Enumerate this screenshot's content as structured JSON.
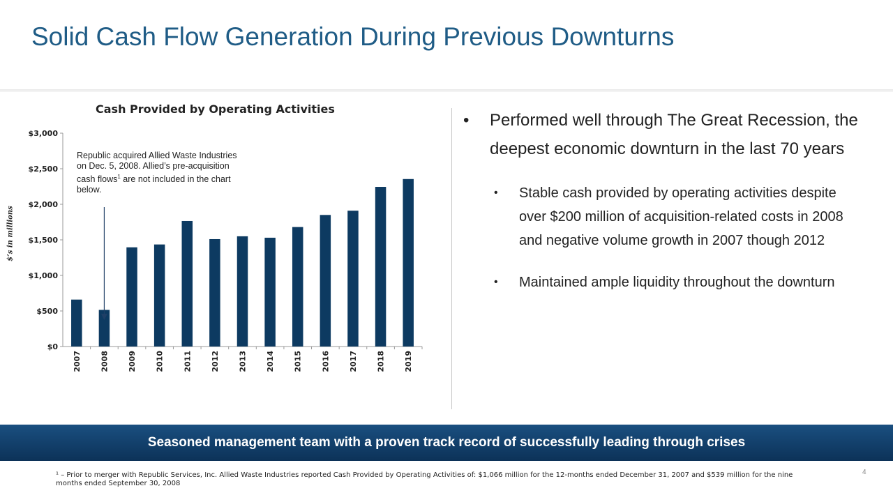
{
  "slide": {
    "title": "Solid Cash Flow Generation During Previous Downturns",
    "page_number": "4"
  },
  "chart_data": {
    "type": "bar",
    "title": "Cash Provided by Operating Activities",
    "ylabel": "$’s in millions",
    "xlabel": "",
    "categories": [
      "2007",
      "2008",
      "2009",
      "2010",
      "2011",
      "2012",
      "2013",
      "2014",
      "2015",
      "2016",
      "2017",
      "2018",
      "2019"
    ],
    "values": [
      660,
      515,
      1395,
      1435,
      1765,
      1510,
      1550,
      1530,
      1680,
      1850,
      1910,
      2245,
      2355
    ],
    "ylim": [
      0,
      3000
    ],
    "yticks": [
      0,
      500,
      1000,
      1500,
      2000,
      2500,
      3000
    ],
    "ytick_labels": [
      "$0",
      "$500",
      "$1,000",
      "$1,500",
      "$2,000",
      "$2,500",
      "$3,000"
    ],
    "bar_color": "#0d3a61",
    "grid": false,
    "legend": "none",
    "annotation": {
      "text_before_sup": "Republic acquired Allied Waste Industries on Dec. 5, 2008.  Allied’s pre-acquisition cash flows",
      "sup": "1",
      "text_after_sup": " are not included in the chart below.",
      "arrow_target_category": "2008"
    }
  },
  "bullets": {
    "main": "Performed well through The Great Recession, the deepest economic downturn in the last 70 years",
    "sub": [
      "Stable cash provided by operating activities despite over $200 million of acquisition-related costs in 2008 and negative volume growth in 2007 though 2012",
      "Maintained ample liquidity throughout the downturn"
    ],
    "bullet_char": "•"
  },
  "banner": {
    "text": "Seasoned management team with a proven track record of successfully leading through crises"
  },
  "footnote": {
    "text": "¹ – Prior to merger with Republic Services, Inc. Allied Waste Industries reported Cash Provided by Operating Activities of: $1,066 million for the 12-months ended December 31, 2007 and $539 million for the nine months ended September 30, 2008"
  },
  "colors": {
    "title": "#1f5c86",
    "bar": "#0d3a61",
    "banner": "#123f6b"
  }
}
